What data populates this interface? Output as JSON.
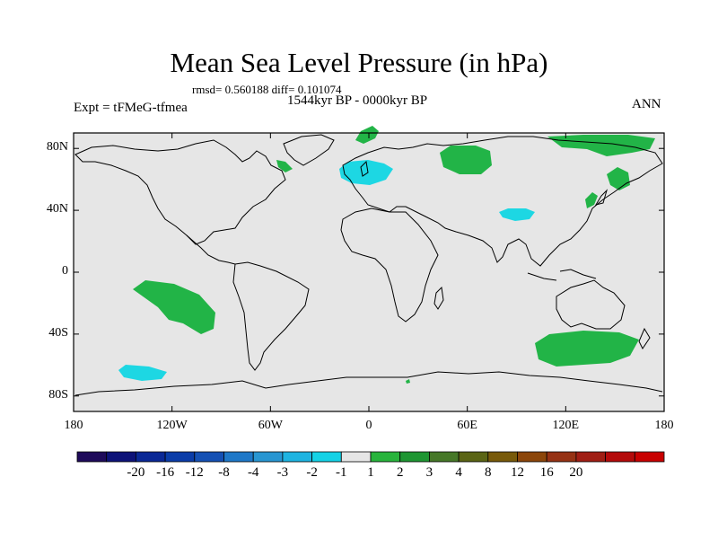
{
  "title": "Mean Sea Level Pressure (in hPa)",
  "stats": "rmsd= 0.560188 diff= 0.101074",
  "period": "1544kyr BP - 0000kyr BP",
  "experiment": "Expt = tFMeG-tfmea",
  "season": "ANN",
  "map": {
    "background_color": "#e6e6e6",
    "lat_ticks": [
      {
        "label": "80N",
        "lat": 80
      },
      {
        "label": "40N",
        "lat": 40
      },
      {
        "label": "0",
        "lat": 0
      },
      {
        "label": "40S",
        "lat": -40
      },
      {
        "label": "80S",
        "lat": -80
      }
    ],
    "lon_ticks": [
      {
        "label": "180",
        "lon": -180
      },
      {
        "label": "120W",
        "lon": -120
      },
      {
        "label": "60W",
        "lon": -60
      },
      {
        "label": "0",
        "lon": 0
      },
      {
        "label": "60E",
        "lon": 60
      },
      {
        "label": "120E",
        "lon": 120
      },
      {
        "label": "180",
        "lon": 180
      }
    ]
  },
  "colorbar": {
    "colors": [
      "#1e0a5a",
      "#0d1278",
      "#0a2896",
      "#0a3ca8",
      "#1450b4",
      "#1e78c8",
      "#2896d2",
      "#1eb4e1",
      "#14d2e6",
      "#e6e6e6",
      "#28b43c",
      "#1e9632",
      "#467828",
      "#5a6414",
      "#785a0a",
      "#8c460a",
      "#963214",
      "#a01e14",
      "#b40a0a",
      "#c80000"
    ],
    "labels": [
      "-20",
      "-16",
      "-12",
      "-8",
      "-4",
      "-3",
      "-2",
      "-1",
      "1",
      "2",
      "3",
      "4",
      "8",
      "12",
      "16",
      "20"
    ]
  },
  "anomaly_regions": [
    {
      "name": "greenland-sea",
      "sign": "positive",
      "color": "#22b447"
    },
    {
      "name": "labrador",
      "sign": "positive",
      "color": "#22b447"
    },
    {
      "name": "north-atlantic-europe",
      "sign": "negative",
      "color": "#1dd7e3"
    },
    {
      "name": "western-siberia",
      "sign": "positive",
      "color": "#22b447"
    },
    {
      "name": "arctic-east-siberia",
      "sign": "positive",
      "color": "#22b447"
    },
    {
      "name": "kamchatka",
      "sign": "positive",
      "color": "#22b447"
    },
    {
      "name": "japan",
      "sign": "positive",
      "color": "#22b447"
    },
    {
      "name": "tibet",
      "sign": "negative",
      "color": "#1dd7e3"
    },
    {
      "name": "south-pacific",
      "sign": "positive",
      "color": "#22b447"
    },
    {
      "name": "southern-ocean-pacific",
      "sign": "negative",
      "color": "#1dd7e3"
    },
    {
      "name": "southern-ocean-australia",
      "sign": "positive",
      "color": "#22b447"
    },
    {
      "name": "antarctic-point",
      "sign": "positive",
      "color": "#22b447"
    }
  ]
}
